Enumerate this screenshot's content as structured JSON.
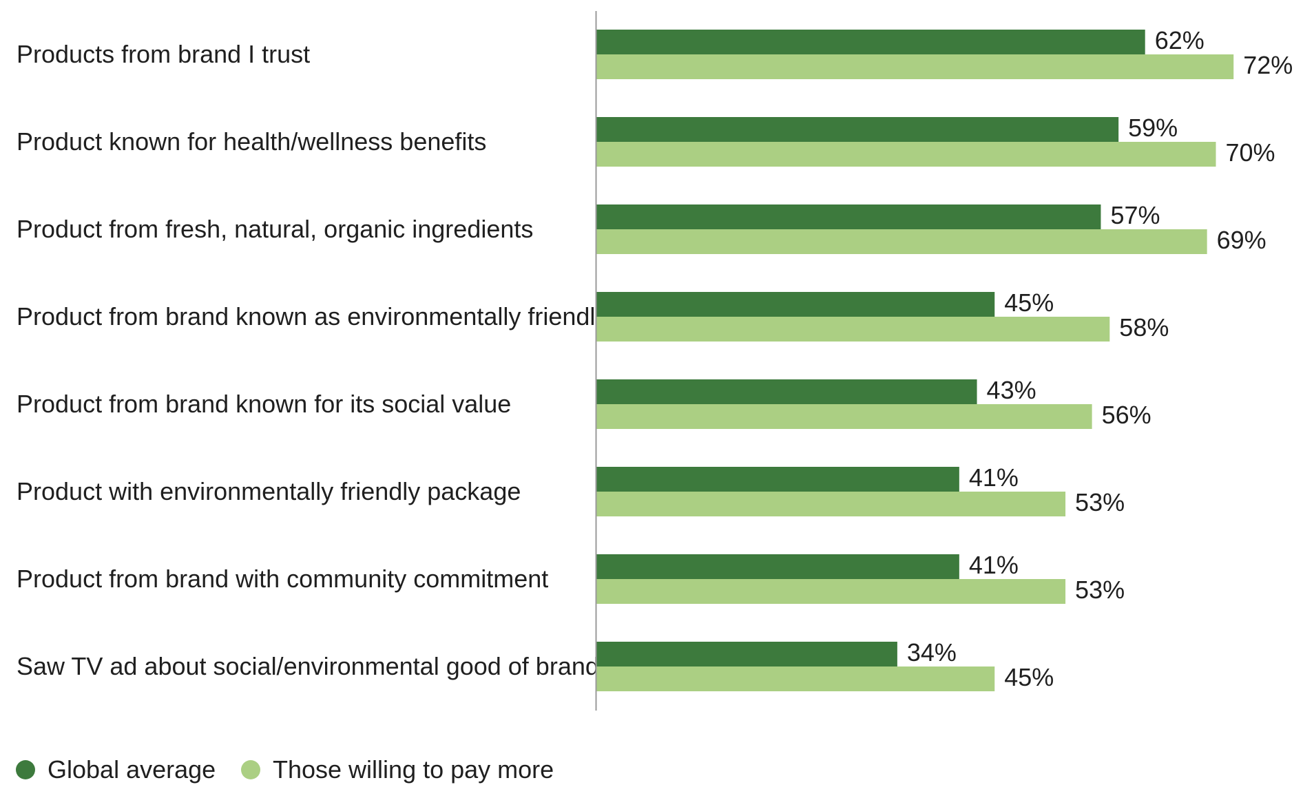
{
  "colors": {
    "series_dark": "#3d7a3d",
    "series_light": "#abcf83",
    "axis": "#9a9a9a",
    "text": "#1f1f1f"
  },
  "chart_data": {
    "type": "bar",
    "orientation": "horizontal",
    "title": "",
    "xlabel": "",
    "ylabel": "",
    "xlim": [
      0,
      100
    ],
    "grid": false,
    "legend_position": "bottom-left",
    "value_suffix": "%",
    "categories": [
      "Products from brand I trust",
      "Product known for health/wellness benefits",
      "Product from fresh, natural, organic ingredients",
      "Product from brand known as environmentally friendly",
      "Product from brand known for its social value",
      "Product with environmentally friendly package",
      "Product from brand with community commitment",
      "Saw TV ad about social/environmental good of brand"
    ],
    "series": [
      {
        "name": "Global average",
        "color": "#3d7a3d",
        "values": [
          62,
          59,
          57,
          45,
          43,
          41,
          41,
          34
        ]
      },
      {
        "name": "Those willing to pay more",
        "color": "#abcf83",
        "values": [
          72,
          70,
          69,
          58,
          56,
          53,
          53,
          45
        ]
      }
    ]
  }
}
